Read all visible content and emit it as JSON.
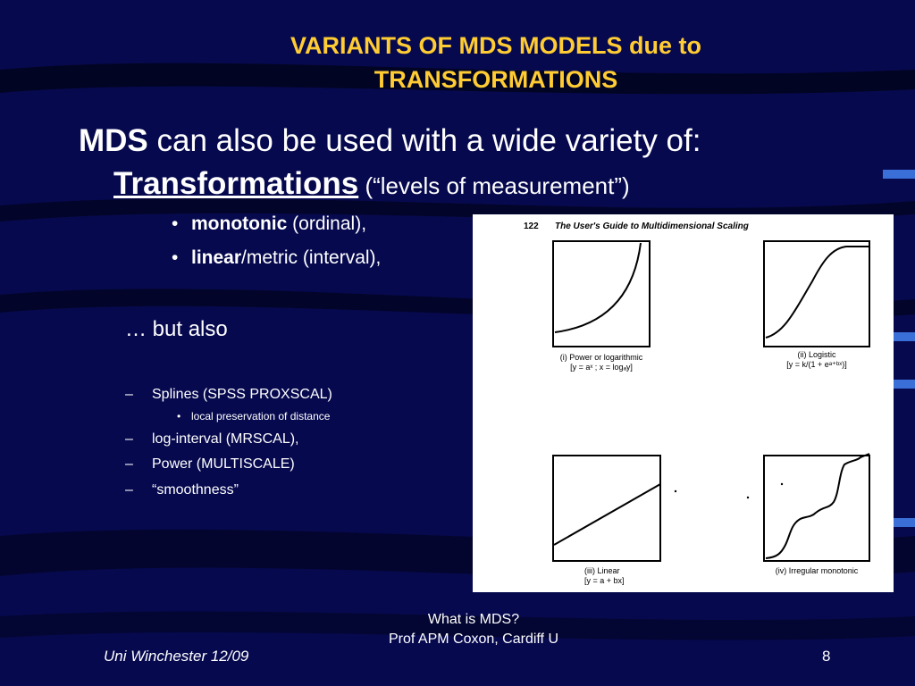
{
  "title": {
    "line1": "VARIANTS OF MDS MODELS due to",
    "line2": "TRANSFORMATIONS"
  },
  "heading": {
    "bold": "MDS",
    "rest": " can also be used with a wide variety of:",
    "transformations": "Transformations",
    "levels": " (“levels of measurement”)"
  },
  "bullets": [
    {
      "bold": "monotonic",
      "rest": " (ordinal),"
    },
    {
      "bold": "linear",
      "rest": "/metric (interval),"
    }
  ],
  "but_also": "… but also",
  "dash_items": [
    "Splines (SPSS PROXSCAL)",
    "log-interval (MRSCAL),",
    "Power (MULTISCALE)",
    "“smoothness”"
  ],
  "sub_item": "local preservation of distance",
  "figure": {
    "page": "122",
    "book_title": "The User's Guide to Multidimensional Scaling",
    "panels": [
      {
        "caption": "(i) Power or logarithmic",
        "formula": "[y = aˣ ; x = logₐy]"
      },
      {
        "caption": "(ii) Logistic",
        "formula": "[y = k/(1 + eᵃ⁺ᵇˣ)]"
      },
      {
        "caption": "(iii) Linear",
        "formula": "[y = a + bx]"
      },
      {
        "caption": "(iv) Irregular monotonic",
        "formula": ""
      }
    ]
  },
  "footer": {
    "left": "Uni Winchester 12/09",
    "center_line1": "What is MDS?",
    "center_line2": "Prof APM Coxon, Cardiff U",
    "page": "8"
  },
  "colors": {
    "background": "#06094e",
    "title": "#ffcc33",
    "text": "#ffffff",
    "accent": "#3a6fd8"
  }
}
